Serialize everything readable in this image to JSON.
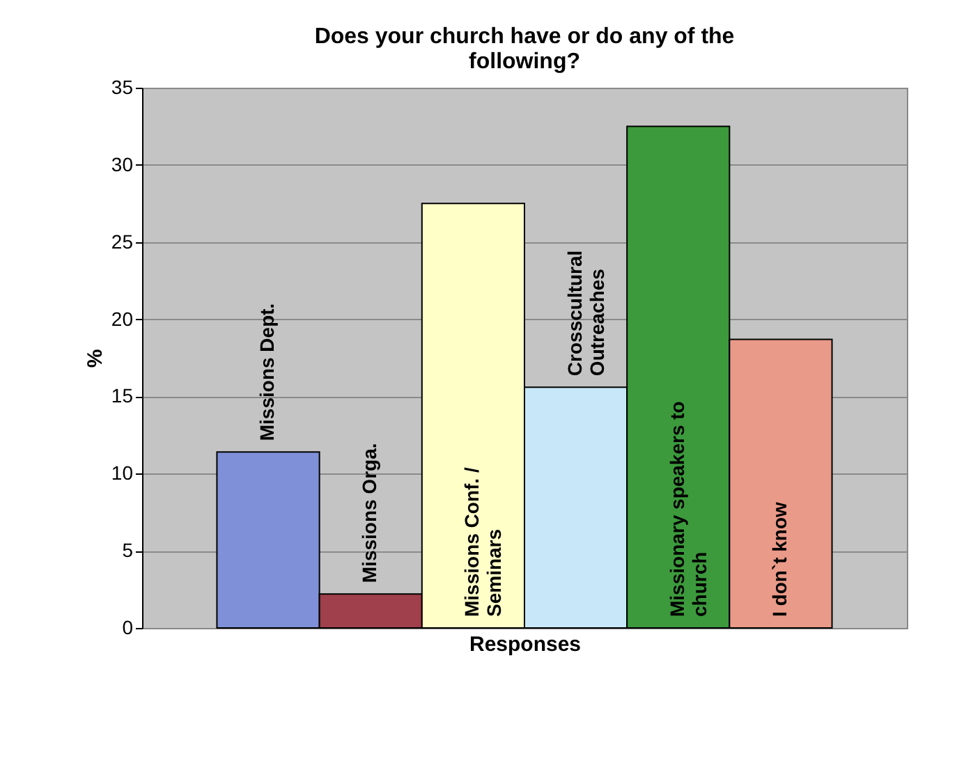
{
  "chart_data": {
    "type": "bar",
    "title": "Does your church have or do any of the following?",
    "xlabel": "Responses",
    "ylabel": "%",
    "categories": [
      "Missions Dept.",
      "Missions Orga.",
      "Missions Conf. /\nSeminars",
      "Crosscultural\nOutreaches",
      "Missionary speakers to\nchurch",
      "I don`t know"
    ],
    "values": [
      11.4,
      2.2,
      27.5,
      15.6,
      32.5,
      18.7
    ],
    "colors": [
      "#8090d8",
      "#a0404c",
      "#ffffc8",
      "#c8e8fa",
      "#3c9a3c",
      "#ea9a88"
    ],
    "ylim": [
      0,
      35
    ],
    "yticks": [
      0,
      5,
      10,
      15,
      20,
      25,
      30,
      35
    ],
    "grid": "y"
  }
}
